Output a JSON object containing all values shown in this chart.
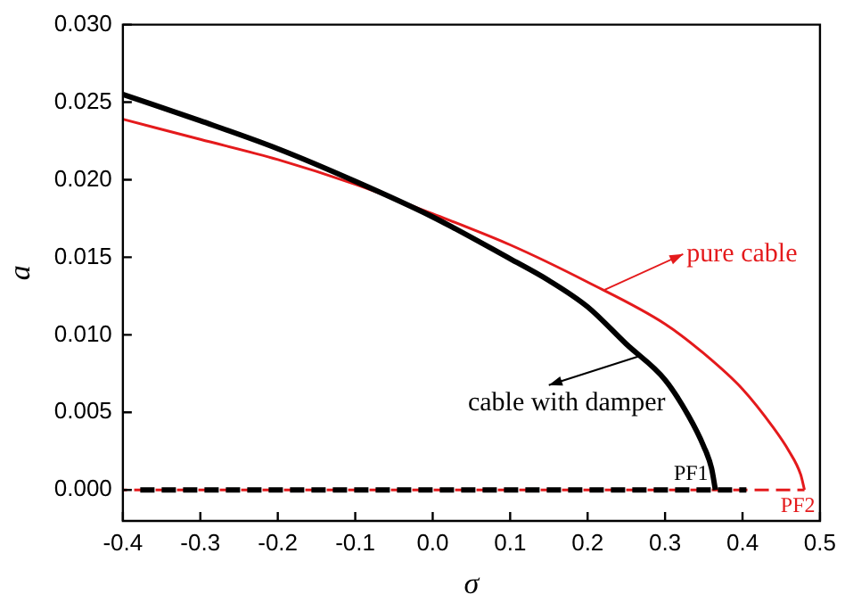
{
  "chart_data": {
    "type": "line",
    "xlabel": "σ",
    "ylabel": "a",
    "xlim": [
      -0.4,
      0.5
    ],
    "ylim": [
      -0.002,
      0.03
    ],
    "xticks": [
      -0.4,
      -0.3,
      -0.2,
      -0.1,
      {
        "value": 0,
        "label": "0.0"
      },
      0.1,
      0.2,
      0.3,
      0.4,
      0.5
    ],
    "yticks": [
      {
        "value": 0,
        "label": "0.000"
      },
      {
        "value": 0.005,
        "label": "0.005"
      },
      {
        "value": 0.01,
        "label": "0.010"
      },
      {
        "value": 0.015,
        "label": "0.015"
      },
      {
        "value": 0.02,
        "label": "0.020"
      },
      {
        "value": 0.025,
        "label": "0.025"
      },
      {
        "value": 0.03,
        "label": "0.030"
      }
    ],
    "grid": false,
    "marker": "none",
    "series": [
      {
        "color": "#000000",
        "x": [
          -0.4,
          -0.3,
          -0.2,
          -0.1,
          0,
          0.1,
          0.15,
          0.2,
          0.25,
          0.3,
          0.33,
          0.35,
          0.36,
          0.365
        ],
        "values": [
          0.0255,
          0.0238,
          0.022,
          0.0199,
          0.0176,
          0.0149,
          0.0135,
          0.0118,
          0.0094,
          0.0071,
          0.0048,
          0.0028,
          0.0014,
          0
        ]
      },
      {
        "color": "#e41a1c",
        "x": [
          -0.4,
          -0.3,
          -0.2,
          -0.1,
          0,
          0.1,
          0.2,
          0.3,
          0.35,
          0.4,
          0.44,
          0.46,
          0.475,
          0.48
        ],
        "values": [
          0.0239,
          0.0226,
          0.0213,
          0.0197,
          0.0178,
          0.0158,
          0.0134,
          0.0107,
          0.0088,
          0.0065,
          0.004,
          0.0025,
          0.001,
          0
        ]
      },
      {
        "color": "#000000",
        "line_style": "dashed",
        "x": [
          -0.38,
          0.405
        ],
        "values": [
          0,
          0
        ]
      },
      {
        "color": "#e41a1c",
        "line_style": "dashed",
        "x": [
          -0.4,
          0.48
        ],
        "values": [
          0,
          0
        ]
      }
    ],
    "annotations": [
      {
        "text": "cable with damper",
        "x": 0.265,
        "y": 0.0086
      },
      {
        "text": "pure cable",
        "x": 0.222,
        "y": 0.0129
      },
      {
        "text": "PF1",
        "x": 0.365,
        "y": 0
      },
      {
        "text": "PF2",
        "x": 0.48,
        "y": 0
      }
    ]
  }
}
